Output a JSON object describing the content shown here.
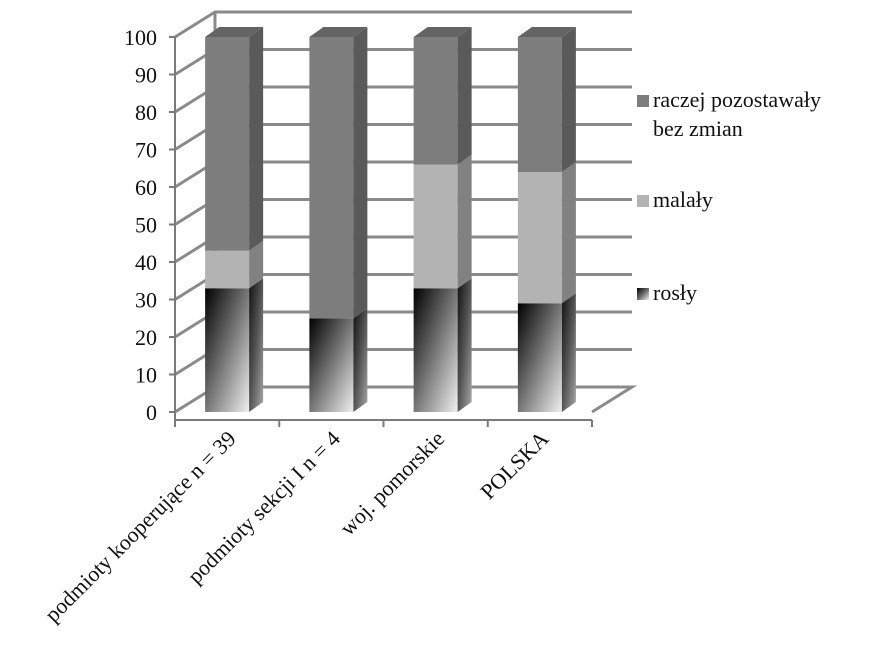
{
  "chart_data": {
    "type": "bar",
    "stacked": true,
    "three_d": true,
    "categories": [
      "podmioty kooperujące n = 39",
      "podmioty sekcji I n = 4",
      "woj. pomorskie",
      "POLSKA"
    ],
    "series": [
      {
        "name": "rosły",
        "values": [
          33,
          25,
          33,
          29
        ],
        "color": "#2a2a2a"
      },
      {
        "name": "malały",
        "values": [
          10,
          0,
          33,
          35
        ],
        "color": "#b3b3b3"
      },
      {
        "name": "raczej pozostawały bez zmian",
        "values": [
          57,
          75,
          34,
          36
        ],
        "color": "#7d7d7d"
      }
    ],
    "legend": {
      "position": "right",
      "entries": [
        {
          "series": 2,
          "lines": [
            "raczej pozostawały",
            "bez zmian"
          ]
        },
        {
          "series": 1,
          "lines": [
            "malały"
          ]
        },
        {
          "series": 0,
          "lines": [
            "rosły"
          ]
        }
      ]
    },
    "yticks": [
      "0",
      "10",
      "20",
      "30",
      "40",
      "50",
      "60",
      "70",
      "80",
      "90",
      "100"
    ],
    "ylim": [
      0,
      100
    ],
    "grid": true,
    "title": "",
    "xlabel": "",
    "ylabel": ""
  }
}
